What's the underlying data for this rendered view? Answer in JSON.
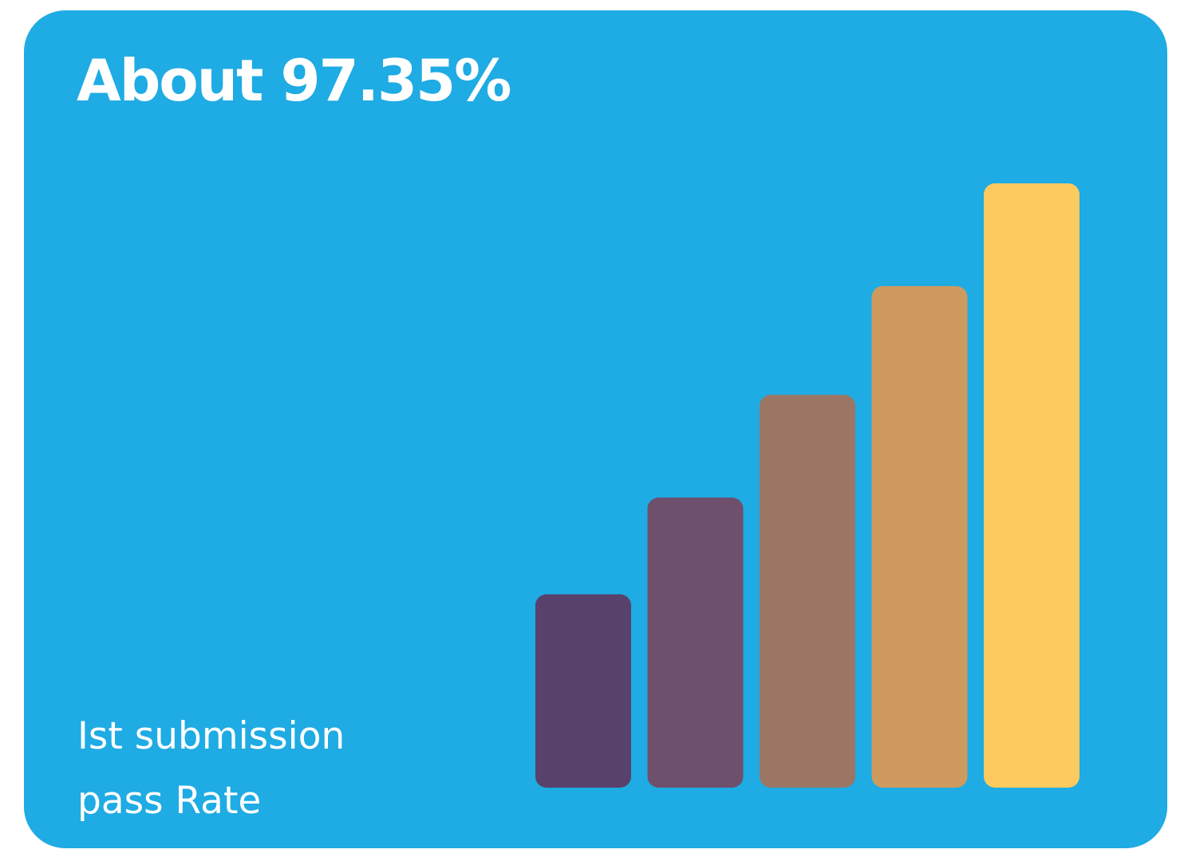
{
  "card": {
    "background": "#1fabe3",
    "headline": "About 97.35%",
    "caption_lines": [
      "Ist submission",
      "pass Rate"
    ]
  },
  "chart_data": {
    "type": "bar",
    "categories": [
      "",
      "",
      "",
      "",
      ""
    ],
    "values": [
      32,
      48,
      65,
      83,
      100
    ],
    "colors": [
      "#58416b",
      "#6e4f6c",
      "#9b7664",
      "#cf9a5d",
      "#fdca60"
    ],
    "title": "",
    "xlabel": "",
    "ylabel": "",
    "ylim": [
      0,
      100
    ],
    "grid": false,
    "axes_visible": false
  }
}
